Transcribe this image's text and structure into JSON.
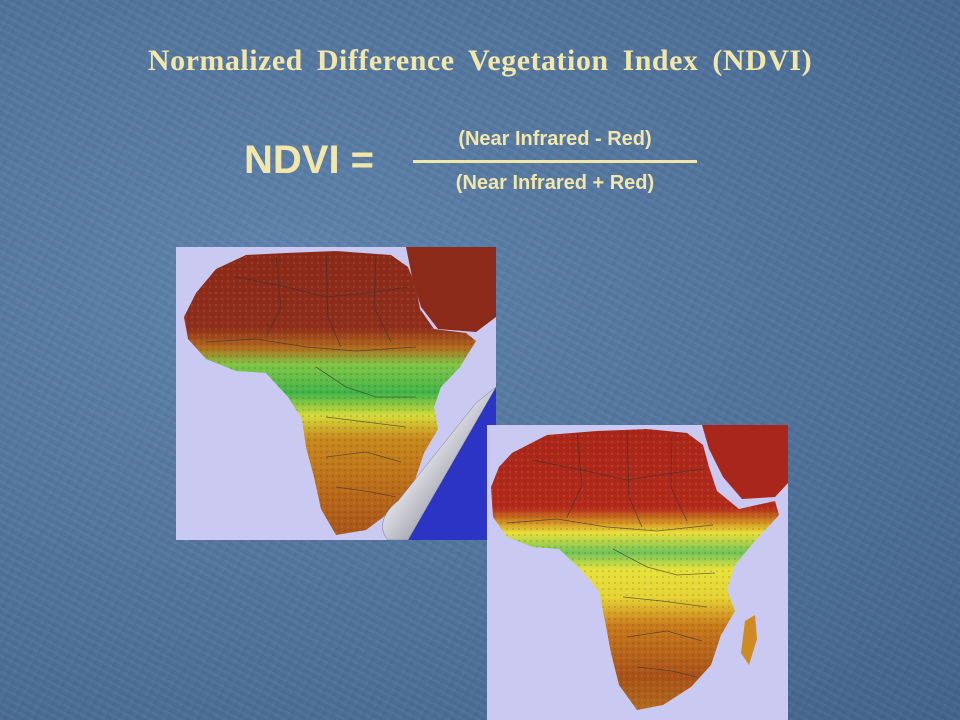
{
  "slide": {
    "title": "Normalized Difference Vegetation Index (NDVI)",
    "formula": {
      "lhs": "NDVI =",
      "numerator": "(Near Infrared - Red)",
      "denominator": "(Near Infrared + Red)"
    }
  },
  "colors": {
    "background": "#4f729b",
    "text": "#f2e6a9",
    "map_ocean": "#c9c9f2",
    "page_curl_fold": "#2b34c4"
  },
  "maps": [
    {
      "name": "ndvi-map-africa-green-season"
    },
    {
      "name": "ndvi-map-africa-dry-season"
    }
  ]
}
